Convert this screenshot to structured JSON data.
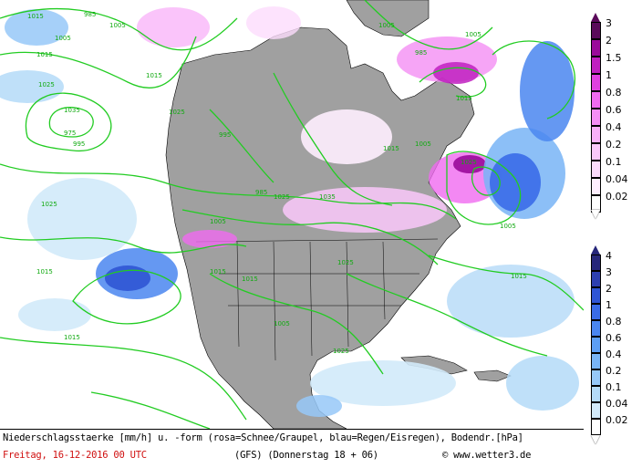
{
  "map": {
    "isobars": [
      "1015",
      "985",
      "1005",
      "1015",
      "1025",
      "995",
      "1035",
      "975",
      "1005",
      "1015",
      "1025",
      "1005",
      "985",
      "995",
      "1025",
      "1035",
      "1025",
      "1015",
      "1005",
      "985",
      "1015",
      "1005",
      "1005",
      "1025",
      "1015",
      "1015",
      "1015",
      "1025",
      "1015",
      "1005",
      "1005",
      "1015",
      "1025"
    ],
    "colors": {
      "land": "#a0a0a0",
      "sea": "#ffffff",
      "isobar": "#22cc22",
      "border": "#000000"
    }
  },
  "legend_snow": {
    "title_levels": [
      "3",
      "2",
      "1.5",
      "1",
      "0.8",
      "0.6",
      "0.4",
      "0.2",
      "0.1",
      "0.04",
      "0.02"
    ],
    "colors": [
      "#5a0a5a",
      "#9a0a9a",
      "#c020c0",
      "#e040e0",
      "#f06af0",
      "#f48ef4",
      "#f8b0f8",
      "#fac8fa",
      "#fcdcfc",
      "#feeefe",
      "#ffffff"
    ]
  },
  "legend_rain": {
    "levels": [
      "4",
      "3",
      "2",
      "1",
      "0.8",
      "0.6",
      "0.4",
      "0.2",
      "0.1",
      "0.04",
      "0.02"
    ],
    "colors": [
      "#26267a",
      "#2d3fb0",
      "#2f55d4",
      "#3a6ce8",
      "#4a86f0",
      "#5c9ef4",
      "#78b4f6",
      "#96c8f8",
      "#b4daf8",
      "#d2eafa",
      "#ffffff"
    ]
  },
  "footer": {
    "caption": "Niederschlagsstaerke [mm/h] u. -form (rosa=Schnee/Graupel, blau=Regen/Eisregen), Bodendr.[hPa]",
    "date": "Freitag, 16-12-2016  00 UTC",
    "model": "(GFS)  (Donnerstag 18 + 06)",
    "copyright": "© www.wetter3.de"
  }
}
